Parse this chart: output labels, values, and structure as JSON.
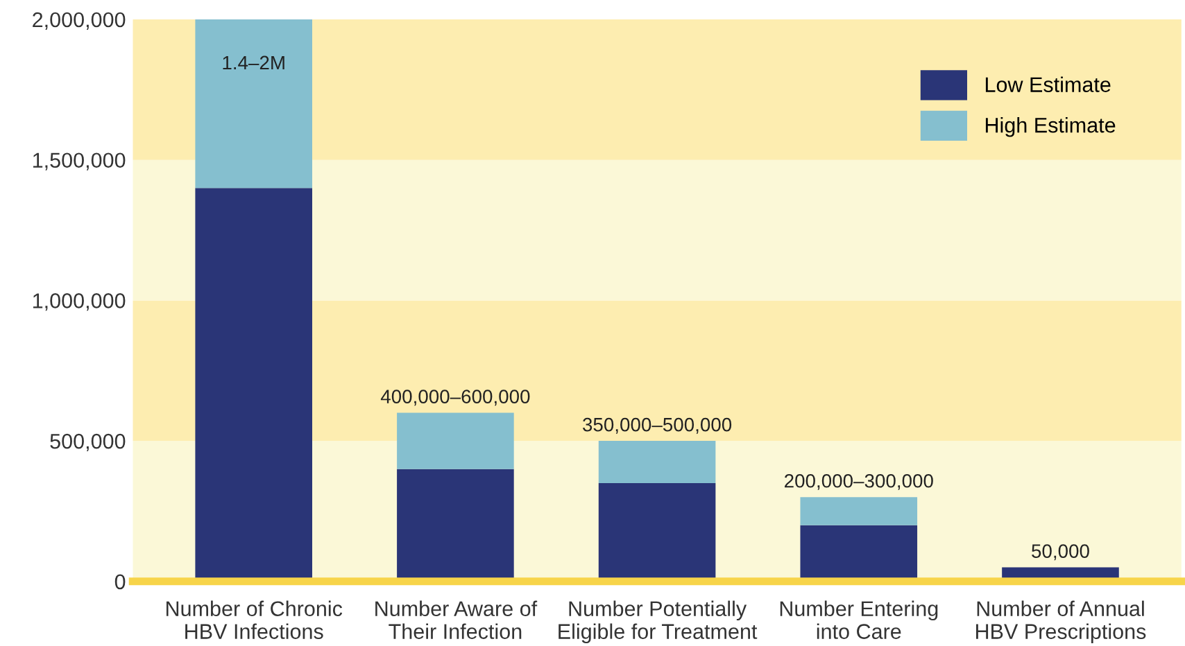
{
  "chart_data": {
    "type": "bar",
    "stacked": true,
    "categories": [
      "Number of Chronic\nHBV Infections",
      "Number Aware of\nTheir Infection",
      "Number Potentially\nEligible for Treatment",
      "Number Entering\ninto Care",
      "Number of Annual\nHBV Prescriptions"
    ],
    "series": [
      {
        "name": "Low Estimate",
        "color": "#2a3577",
        "values": [
          1400000,
          400000,
          350000,
          200000,
          50000
        ]
      },
      {
        "name": "High Estimate",
        "color": "#85bfcf",
        "values": [
          600000,
          200000,
          150000,
          100000,
          null
        ]
      }
    ],
    "totals": [
      "1.4–2M",
      "400,000–600,000",
      "350,000–500,000",
      "200,000–300,000",
      "50,000"
    ],
    "ylim": [
      0,
      2000000
    ],
    "yticks": [
      0,
      {
        "value": 500000,
        "label": "500,000"
      },
      {
        "value": 1000000,
        "label": "1,000,000"
      },
      {
        "value": 1500000,
        "label": "1,500,000"
      },
      {
        "value": 2000000,
        "label": "2,000,000"
      }
    ],
    "bands": [
      {
        "axis": "y",
        "from": 0,
        "to": 500000,
        "color": "#fbf8d7"
      },
      {
        "axis": "y",
        "from": 500000,
        "to": 1000000,
        "color": "#fdedb0"
      },
      {
        "axis": "y",
        "from": 1000000,
        "to": 1500000,
        "color": "#fbf8d7"
      },
      {
        "axis": "y",
        "from": 1500000,
        "to": 2000000,
        "color": "#fdedb0"
      }
    ],
    "legend": "top right",
    "grid": false
  }
}
